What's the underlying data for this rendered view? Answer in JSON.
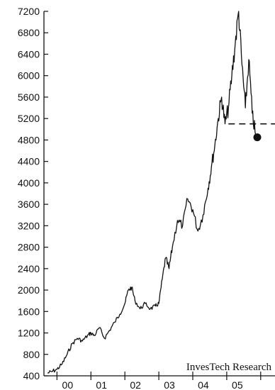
{
  "chart_data": {
    "type": "line",
    "title": "",
    "xlabel": "",
    "ylabel": "",
    "ylim": [
      400,
      7200
    ],
    "y_ticks": [
      400,
      800,
      1200,
      1600,
      2000,
      2400,
      2800,
      3200,
      3600,
      4000,
      4400,
      4800,
      5200,
      5600,
      6000,
      6400,
      6800,
      7200
    ],
    "x_tick_labels": [
      "00",
      "01",
      "02",
      "03",
      "04",
      "05"
    ],
    "x_range_years": [
      1999.7,
      2005.9
    ],
    "grid": false,
    "credit": "InvesTech Research",
    "series": [
      {
        "values": [
          {
            "x": 1999.72,
            "y": 450
          },
          {
            "x": 1999.85,
            "y": 480
          },
          {
            "x": 2000.0,
            "y": 520
          },
          {
            "x": 2000.15,
            "y": 620
          },
          {
            "x": 2000.3,
            "y": 800
          },
          {
            "x": 2000.45,
            "y": 1000
          },
          {
            "x": 2000.6,
            "y": 1100
          },
          {
            "x": 2000.75,
            "y": 1050
          },
          {
            "x": 2000.9,
            "y": 1150
          },
          {
            "x": 2001.0,
            "y": 1200
          },
          {
            "x": 2001.1,
            "y": 1150
          },
          {
            "x": 2001.25,
            "y": 1300
          },
          {
            "x": 2001.4,
            "y": 1100
          },
          {
            "x": 2001.55,
            "y": 1250
          },
          {
            "x": 2001.7,
            "y": 1400
          },
          {
            "x": 2001.85,
            "y": 1550
          },
          {
            "x": 2002.0,
            "y": 1750
          },
          {
            "x": 2002.1,
            "y": 2000
          },
          {
            "x": 2002.2,
            "y": 2050
          },
          {
            "x": 2002.3,
            "y": 1800
          },
          {
            "x": 2002.45,
            "y": 1650
          },
          {
            "x": 2002.6,
            "y": 1750
          },
          {
            "x": 2002.75,
            "y": 1650
          },
          {
            "x": 2002.9,
            "y": 1700
          },
          {
            "x": 2003.0,
            "y": 1750
          },
          {
            "x": 2003.1,
            "y": 2200
          },
          {
            "x": 2003.2,
            "y": 2600
          },
          {
            "x": 2003.3,
            "y": 2400
          },
          {
            "x": 2003.4,
            "y": 2800
          },
          {
            "x": 2003.55,
            "y": 3300
          },
          {
            "x": 2003.7,
            "y": 3200
          },
          {
            "x": 2003.85,
            "y": 3700
          },
          {
            "x": 2004.0,
            "y": 3500
          },
          {
            "x": 2004.15,
            "y": 3100
          },
          {
            "x": 2004.3,
            "y": 3400
          },
          {
            "x": 2004.45,
            "y": 3900
          },
          {
            "x": 2004.55,
            "y": 4300
          },
          {
            "x": 2004.65,
            "y": 4700
          },
          {
            "x": 2004.75,
            "y": 5200
          },
          {
            "x": 2004.85,
            "y": 5600
          },
          {
            "x": 2004.95,
            "y": 5100
          },
          {
            "x": 2005.05,
            "y": 5400
          },
          {
            "x": 2005.15,
            "y": 6000
          },
          {
            "x": 2005.25,
            "y": 6600
          },
          {
            "x": 2005.35,
            "y": 7200
          },
          {
            "x": 2005.45,
            "y": 6200
          },
          {
            "x": 2005.55,
            "y": 5400
          },
          {
            "x": 2005.65,
            "y": 6300
          },
          {
            "x": 2005.75,
            "y": 5300
          },
          {
            "x": 2005.85,
            "y": 4900
          }
        ]
      }
    ],
    "reference_line_y": 5100,
    "last_point": {
      "x": 2005.9,
      "y": 4850
    }
  }
}
